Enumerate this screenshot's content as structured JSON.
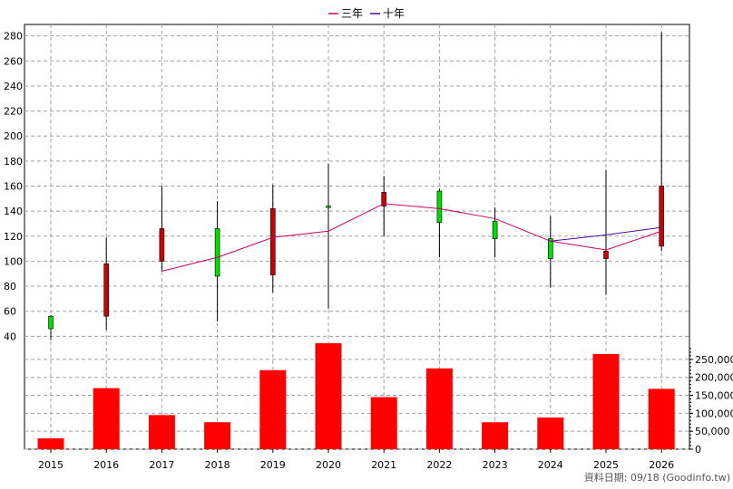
{
  "chart_data": {
    "type": "candlestick+bar",
    "legend": [
      {
        "label": "三年",
        "color": "#cc0066"
      },
      {
        "label": "十年",
        "color": "#4b0aa0"
      }
    ],
    "x": [
      "2015",
      "2016",
      "2017",
      "2018",
      "2019",
      "2020",
      "2021",
      "2022",
      "2023",
      "2024",
      "2025",
      "2026"
    ],
    "price_axis": {
      "ticks": [
        40,
        60,
        80,
        100,
        120,
        140,
        160,
        180,
        200,
        220,
        240,
        260,
        280
      ],
      "ylim": [
        33,
        287
      ]
    },
    "volume_axis": {
      "ticks": [
        0,
        50000,
        100000,
        150000,
        200000,
        250000
      ],
      "tick_labels": [
        "0",
        "50,000",
        "100,000",
        "150,000",
        "200,000",
        "250,000"
      ],
      "ylim": [
        0,
        285000
      ]
    },
    "candles": [
      {
        "year": "2015",
        "open": 56,
        "close": 46,
        "high": 57,
        "low": 37
      },
      {
        "year": "2016",
        "open": 56,
        "close": 98,
        "high": 119,
        "low": 45
      },
      {
        "year": "2017",
        "open": 100,
        "close": 126,
        "high": 160,
        "low": 92
      },
      {
        "year": "2018",
        "open": 126,
        "close": 88,
        "high": 148,
        "low": 52
      },
      {
        "year": "2019",
        "open": 89,
        "close": 142,
        "high": 161,
        "low": 75
      },
      {
        "year": "2020",
        "open": 144,
        "close": 143,
        "high": 178,
        "low": 62
      },
      {
        "year": "2021",
        "open": 144,
        "close": 155,
        "high": 168,
        "low": 120
      },
      {
        "year": "2022",
        "open": 156,
        "close": 131,
        "high": 158,
        "low": 103
      },
      {
        "year": "2023",
        "open": 132,
        "close": 118,
        "high": 143,
        "low": 103
      },
      {
        "year": "2024",
        "open": 118,
        "close": 102,
        "high": 136,
        "low": 79
      },
      {
        "year": "2025",
        "open": 102,
        "close": 108,
        "high": 173,
        "low": 73
      },
      {
        "year": "2026",
        "open": 112,
        "close": 160,
        "high": 283,
        "low": 108
      }
    ],
    "series": [
      {
        "name": "三年",
        "color": "#cc0066",
        "x": [
          "2017",
          "2018",
          "2019",
          "2020",
          "2021",
          "2022",
          "2023",
          "2024",
          "2025",
          "2026"
        ],
        "values": [
          92,
          103,
          119,
          124,
          146,
          142,
          134,
          116,
          109,
          124
        ]
      },
      {
        "name": "十年",
        "color": "#4b0aa0",
        "x": [
          "2024",
          "2025",
          "2026"
        ],
        "values": [
          116,
          121,
          127
        ]
      }
    ],
    "volume": [
      30000,
      170000,
      95000,
      75000,
      220000,
      295000,
      145000,
      225000,
      75000,
      88000,
      265000,
      168000
    ]
  },
  "footer": {
    "text": "資料日期: 09/18  (Goodinfo.tw)"
  }
}
